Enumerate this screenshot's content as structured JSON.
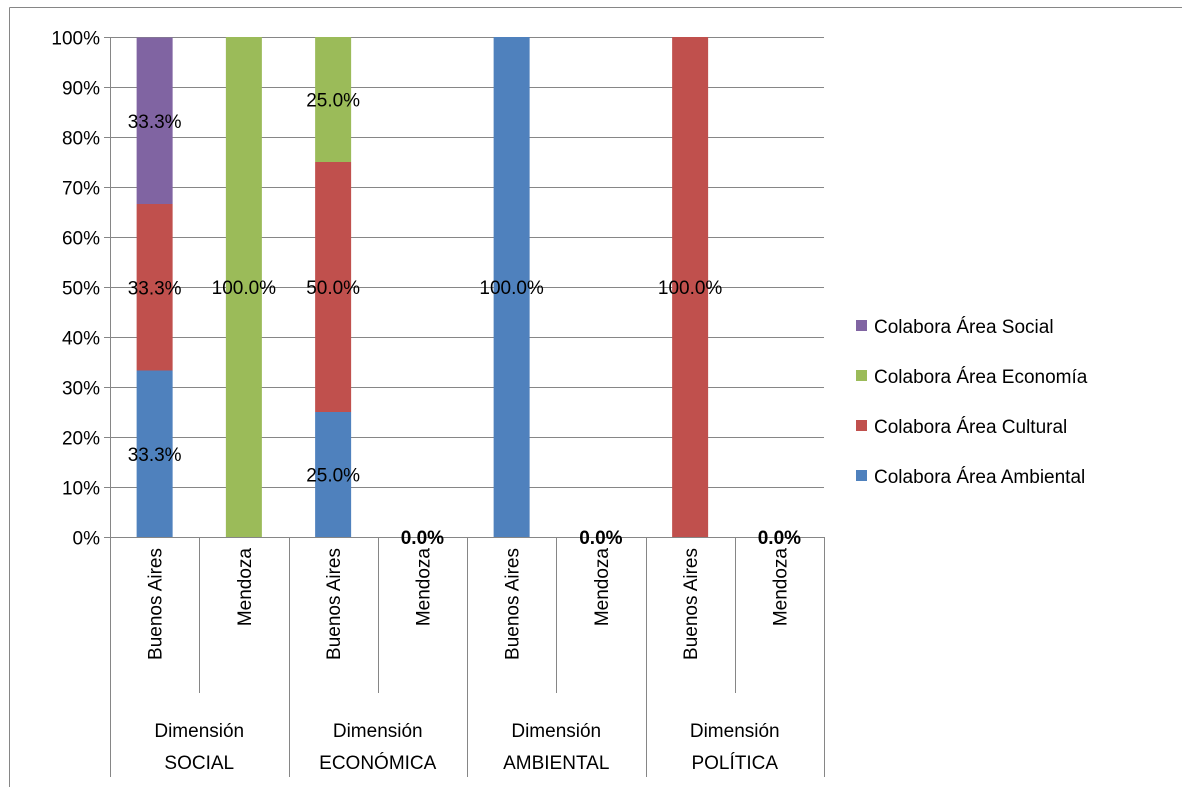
{
  "chart_data": {
    "type": "bar",
    "stacked": true,
    "percent_stacked": true,
    "groups": [
      {
        "label_lines": [
          "Dimensión",
          "SOCIAL"
        ],
        "categories": [
          "Buenos Aires",
          "Mendoza"
        ]
      },
      {
        "label_lines": [
          "Dimensión",
          "ECONÓMICA"
        ],
        "categories": [
          "Buenos Aires",
          "Mendoza"
        ]
      },
      {
        "label_lines": [
          "Dimensión",
          "AMBIENTAL"
        ],
        "categories": [
          "Buenos Aires",
          "Mendoza"
        ]
      },
      {
        "label_lines": [
          "Dimensión",
          "POLÍTICA"
        ],
        "categories": [
          "Buenos Aires",
          "Mendoza"
        ]
      }
    ],
    "series": [
      {
        "name": "Colabora Área Ambiental",
        "color": "#4F81BD",
        "values": [
          33.3,
          0,
          25.0,
          0,
          100.0,
          0,
          0,
          0
        ],
        "labels": [
          "33.3%",
          null,
          "25.0%",
          null,
          "100.0%",
          null,
          null,
          null
        ]
      },
      {
        "name": "Colabora Área Cultural",
        "color": "#C0504D",
        "values": [
          33.3,
          0,
          50.0,
          0,
          0,
          0,
          100.0,
          0
        ],
        "labels": [
          "33.3%",
          null,
          "50.0%",
          null,
          null,
          null,
          "100.0%",
          null
        ]
      },
      {
        "name": "Colabora Área Economía",
        "color": "#9BBB59",
        "values": [
          0,
          100.0,
          25.0,
          0,
          0,
          0,
          0,
          0
        ],
        "labels": [
          null,
          "100.0%",
          "25.0%",
          null,
          null,
          null,
          null,
          null
        ]
      },
      {
        "name": "Colabora Área Social",
        "color": "#8064A2",
        "values": [
          33.3,
          0,
          0,
          0,
          0,
          0,
          0,
          0
        ],
        "labels": [
          "33.3%",
          null,
          null,
          null,
          null,
          null,
          null,
          null
        ]
      }
    ],
    "zero_labels": [
      null,
      null,
      null,
      "0.0%",
      null,
      "0.0%",
      null,
      "0.0%"
    ],
    "yticks": [
      "0%",
      "10%",
      "20%",
      "30%",
      "40%",
      "50%",
      "60%",
      "70%",
      "80%",
      "90%",
      "100%"
    ],
    "ylim": [
      0,
      100
    ],
    "grid": true,
    "legend_position": "right",
    "legend_order": [
      "Colabora Área Social",
      "Colabora Área Economía",
      "Colabora Área Cultural",
      "Colabora Área Ambiental"
    ],
    "title": "",
    "xlabel": "",
    "ylabel": ""
  }
}
